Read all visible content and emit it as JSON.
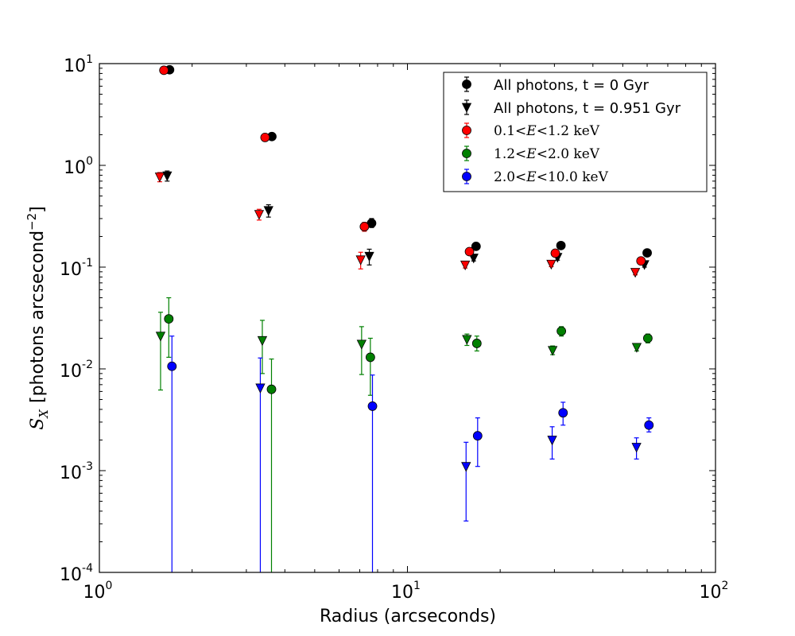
{
  "chart_data": {
    "type": "scatter",
    "xscale": "log",
    "yscale": "log",
    "xlim": [
      1,
      100
    ],
    "ylim": [
      0.0001,
      10
    ],
    "xlabel": "Radius (arcseconds)",
    "ylabel_symbol": "S",
    "ylabel_subscript": "X",
    "ylabel_units_prefix": "[photons arcsecond",
    "ylabel_units_exponent": "−2",
    "ylabel_units_suffix": "]",
    "x_ticks": [
      {
        "value": 1,
        "base": "10",
        "exp": "0"
      },
      {
        "value": 10,
        "base": "10",
        "exp": "1"
      },
      {
        "value": 100,
        "base": "10",
        "exp": "2"
      }
    ],
    "y_ticks": [
      {
        "value": 0.0001,
        "base": "10",
        "exp": "-4"
      },
      {
        "value": 0.001,
        "base": "10",
        "exp": "-3"
      },
      {
        "value": 0.01,
        "base": "10",
        "exp": "-2"
      },
      {
        "value": 0.1,
        "base": "10",
        "exp": "-1"
      },
      {
        "value": 1,
        "base": "10",
        "exp": "0"
      },
      {
        "value": 10,
        "base": "10",
        "exp": "1"
      }
    ],
    "legend_position": "upper-right",
    "series": [
      {
        "name": "All photons, t = 0 Gyr",
        "color": "#000000",
        "marker": "circle",
        "points": [
          {
            "x": 1.69,
            "y": 8.7,
            "lo": 8.4,
            "hi": 9.0
          },
          {
            "x": 3.63,
            "y": 1.92,
            "lo": 1.84,
            "hi": 2.0
          },
          {
            "x": 7.65,
            "y": 0.27,
            "lo": 0.245,
            "hi": 0.3
          },
          {
            "x": 16.7,
            "y": 0.16,
            "lo": 0.15,
            "hi": 0.17
          },
          {
            "x": 31.5,
            "y": 0.163,
            "lo": 0.155,
            "hi": 0.172
          },
          {
            "x": 60.0,
            "y": 0.138,
            "lo": 0.131,
            "hi": 0.145
          }
        ]
      },
      {
        "name": "All photons, t = 0.951 Gyr",
        "color": "#000000",
        "marker": "triangle",
        "points": [
          {
            "x": 1.66,
            "y": 0.79,
            "lo": 0.7,
            "hi": 0.88
          },
          {
            "x": 3.54,
            "y": 0.36,
            "lo": 0.31,
            "hi": 0.41
          },
          {
            "x": 7.52,
            "y": 0.128,
            "lo": 0.105,
            "hi": 0.15
          },
          {
            "x": 16.4,
            "y": 0.123,
            "lo": 0.115,
            "hi": 0.131
          },
          {
            "x": 30.7,
            "y": 0.125,
            "lo": 0.117,
            "hi": 0.133
          },
          {
            "x": 58.8,
            "y": 0.106,
            "lo": 0.1,
            "hi": 0.112
          }
        ]
      },
      {
        "name_prefix": "0.1",
        "name_middle": "1.2",
        "name_suffix": " keV",
        "name_var": "E",
        "color": "#ff0000",
        "marker": "circle",
        "points": [
          {
            "x": 1.62,
            "y": 8.6,
            "lo": 8.3,
            "hi": 8.9
          },
          {
            "x": 3.45,
            "y": 1.88,
            "lo": 1.8,
            "hi": 1.96
          },
          {
            "x": 7.25,
            "y": 0.25,
            "lo": 0.225,
            "hi": 0.275
          },
          {
            "x": 15.9,
            "y": 0.142,
            "lo": 0.134,
            "hi": 0.15
          },
          {
            "x": 30.2,
            "y": 0.137,
            "lo": 0.13,
            "hi": 0.145
          },
          {
            "x": 57.3,
            "y": 0.115,
            "lo": 0.109,
            "hi": 0.121
          }
        ]
      },
      {
        "name_prefix": "1.2",
        "name_middle": "2.0",
        "name_suffix": " keV",
        "name_var": "E",
        "color": "#008000",
        "marker": "circle",
        "points": [
          {
            "x": 1.68,
            "y": 0.031,
            "lo": 0.013,
            "hi": 0.05
          },
          {
            "x": 3.62,
            "y": 0.0063,
            "lo": 0.0001,
            "hi": 0.0125
          },
          {
            "x": 7.58,
            "y": 0.013,
            "lo": 0.0055,
            "hi": 0.02
          },
          {
            "x": 16.8,
            "y": 0.0178,
            "lo": 0.015,
            "hi": 0.021
          },
          {
            "x": 31.6,
            "y": 0.0235,
            "lo": 0.021,
            "hi": 0.026
          },
          {
            "x": 60.3,
            "y": 0.02,
            "lo": 0.018,
            "hi": 0.022
          }
        ]
      },
      {
        "name_prefix": "2.0",
        "name_middle": "10.0",
        "name_suffix": " keV",
        "name_var": "E",
        "color": "#0000ff",
        "marker": "circle",
        "points": [
          {
            "x": 1.72,
            "y": 0.0106,
            "lo": 0.0001,
            "hi": 0.021
          },
          {
            "x": 7.7,
            "y": 0.0043,
            "lo": 0.0001,
            "hi": 0.0087
          },
          {
            "x": 16.9,
            "y": 0.0022,
            "lo": 0.0011,
            "hi": 0.0033
          },
          {
            "x": 32.0,
            "y": 0.0037,
            "lo": 0.0028,
            "hi": 0.0047
          },
          {
            "x": 60.8,
            "y": 0.0028,
            "lo": 0.0024,
            "hi": 0.0033
          }
        ]
      },
      {
        "name": "",
        "legend": false,
        "color": "#008000",
        "marker": "triangle",
        "points": [
          {
            "x": 1.58,
            "y": 0.021,
            "lo": 0.0062,
            "hi": 0.036
          },
          {
            "x": 3.38,
            "y": 0.019,
            "lo": 0.009,
            "hi": 0.03
          },
          {
            "x": 7.1,
            "y": 0.0175,
            "lo": 0.0088,
            "hi": 0.026
          },
          {
            "x": 15.6,
            "y": 0.0195,
            "lo": 0.017,
            "hi": 0.022
          },
          {
            "x": 29.6,
            "y": 0.0152,
            "lo": 0.0138,
            "hi": 0.0168
          },
          {
            "x": 55.5,
            "y": 0.0163,
            "lo": 0.015,
            "hi": 0.0177
          }
        ]
      },
      {
        "name": "",
        "legend": false,
        "color": "#0000ff",
        "marker": "triangle",
        "points": [
          {
            "x": 3.33,
            "y": 0.0065,
            "lo": 0.0001,
            "hi": 0.0128
          },
          {
            "x": 15.5,
            "y": 0.0011,
            "lo": 0.00032,
            "hi": 0.0019
          },
          {
            "x": 29.5,
            "y": 0.002,
            "lo": 0.0013,
            "hi": 0.0027
          },
          {
            "x": 55.4,
            "y": 0.0017,
            "lo": 0.0013,
            "hi": 0.0021
          }
        ]
      },
      {
        "name": "",
        "legend": false,
        "color": "#ff0000",
        "marker": "triangle",
        "points": [
          {
            "x": 1.57,
            "y": 0.77,
            "lo": 0.69,
            "hi": 0.85
          },
          {
            "x": 3.3,
            "y": 0.33,
            "lo": 0.29,
            "hi": 0.37
          },
          {
            "x": 7.05,
            "y": 0.118,
            "lo": 0.096,
            "hi": 0.14
          },
          {
            "x": 15.4,
            "y": 0.105,
            "lo": 0.098,
            "hi": 0.112
          },
          {
            "x": 29.3,
            "y": 0.107,
            "lo": 0.101,
            "hi": 0.113
          },
          {
            "x": 54.9,
            "y": 0.089,
            "lo": 0.084,
            "hi": 0.094
          }
        ]
      }
    ]
  }
}
